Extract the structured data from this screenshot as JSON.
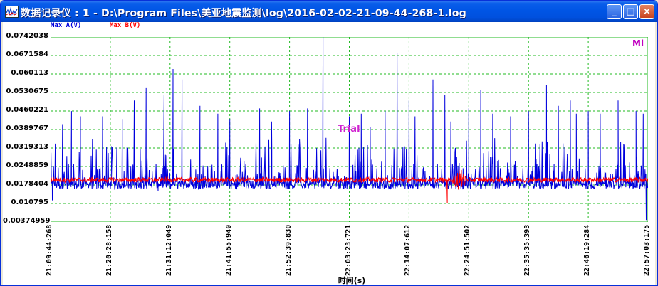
{
  "window": {
    "title": "数据记录仪 : 1 - D:\\Program Files\\美亚地震监测\\log\\2016-02-02-21-09-44-268-1.log",
    "icon": "chart-app-icon",
    "buttons": {
      "minimize": "_",
      "maximize": "□",
      "close": "×"
    }
  },
  "colors": {
    "series_a": "#0000DD",
    "series_b": "#FF0000",
    "grid": "#22BB22",
    "annotation": "#C000C0"
  },
  "chart_data": {
    "type": "line",
    "title": "",
    "xlabel": "时间(s)",
    "ylabel": "",
    "ylim": [
      0.00374959,
      0.0742038
    ],
    "yticks": [
      "0.0742038",
      "0.0671584",
      "0.060113",
      "0.0530675",
      "0.0460221",
      "0.0389767",
      "0.0319313",
      "0.0248859",
      "0.0178404",
      "0.010795",
      "0.00374959"
    ],
    "xticks": [
      "21:09:44:268",
      "21:20:28:158",
      "21:31:12:049",
      "21:41:55:940",
      "21:52:39:830",
      "22:03:23:721",
      "22:14:07:612",
      "22:24:51:502",
      "22:35:35:393",
      "22:46:19:284",
      "22:57:03:175"
    ],
    "grid": true,
    "legend_position": "top-left",
    "series": [
      {
        "name": "Max_A(V)",
        "baseline": 0.0179,
        "noise": 0.0016,
        "peaks": [
          [
            0.02,
            0.041
          ],
          [
            0.035,
            0.046
          ],
          [
            0.05,
            0.044
          ],
          [
            0.087,
            0.044
          ],
          [
            0.12,
            0.043
          ],
          [
            0.14,
            0.05
          ],
          [
            0.16,
            0.055
          ],
          [
            0.19,
            0.052
          ],
          [
            0.205,
            0.062
          ],
          [
            0.22,
            0.058
          ],
          [
            0.25,
            0.048
          ],
          [
            0.28,
            0.045
          ],
          [
            0.3,
            0.043
          ],
          [
            0.35,
            0.047
          ],
          [
            0.37,
            0.042
          ],
          [
            0.4,
            0.046
          ],
          [
            0.43,
            0.047
          ],
          [
            0.456,
            0.0742
          ],
          [
            0.5,
            0.044
          ],
          [
            0.52,
            0.045
          ],
          [
            0.535,
            0.04
          ],
          [
            0.56,
            0.046
          ],
          [
            0.58,
            0.068
          ],
          [
            0.6,
            0.05
          ],
          [
            0.61,
            0.044
          ],
          [
            0.64,
            0.058
          ],
          [
            0.66,
            0.052
          ],
          [
            0.67,
            0.042
          ],
          [
            0.7,
            0.047
          ],
          [
            0.72,
            0.054
          ],
          [
            0.74,
            0.045
          ],
          [
            0.77,
            0.044
          ],
          [
            0.8,
            0.046
          ],
          [
            0.83,
            0.056
          ],
          [
            0.85,
            0.048
          ],
          [
            0.87,
            0.05
          ],
          [
            0.88,
            0.045
          ],
          [
            0.9,
            0.046
          ],
          [
            0.92,
            0.045
          ],
          [
            0.95,
            0.05
          ],
          [
            0.98,
            0.046
          ],
          [
            0.992,
            0.045
          ]
        ],
        "dips": [
          [
            0.003,
            0.012
          ],
          [
            0.18,
            0.0155
          ],
          [
            0.69,
            0.0162
          ],
          [
            0.997,
            0.0045
          ]
        ]
      },
      {
        "name": "Max_B(V)",
        "baseline": 0.0198,
        "noise": 0.0009,
        "burst": [
          0.67,
          0.7,
          0.0052
        ],
        "dips": [
          [
            0.664,
            0.011
          ]
        ]
      }
    ],
    "annotations": [
      "Mi",
      "Trial"
    ]
  }
}
